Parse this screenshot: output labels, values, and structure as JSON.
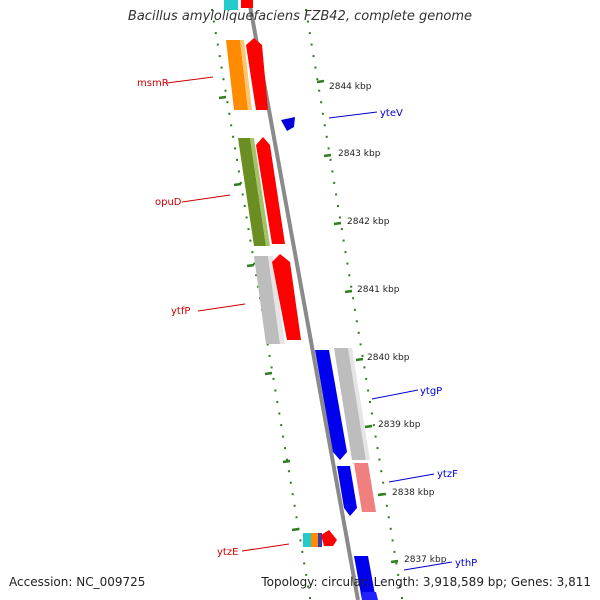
{
  "title": "Bacillus amyloliquefaciens FZB42, complete genome",
  "accession": "Accession: NC_009725",
  "summary": "Topology: circular; Length: 3,918,589 bp; Genes: 3,811",
  "colors": {
    "backbone": "#8a8a8a",
    "tick": "#2e7d1e",
    "left_label": "#cc0000",
    "right_label": "#0000cc"
  },
  "kbp_labels": [
    "2844 kbp",
    "2843 kbp",
    "2842 kbp",
    "2841 kbp",
    "2840 kbp",
    "2839 kbp",
    "2838 kbp",
    "2837 kbp"
  ],
  "genes_left": [
    "msmR",
    "opuD",
    "ytfP",
    "ytzE"
  ],
  "genes_right": [
    "yteV",
    "ytgP",
    "ytzF",
    "ythP"
  ]
}
